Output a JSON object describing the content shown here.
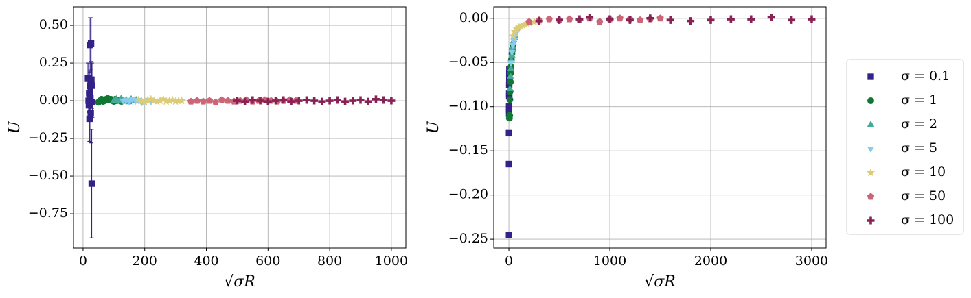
{
  "chart_data": [
    {
      "type": "scatter",
      "xlabel": "√σR",
      "ylabel": "U",
      "grid": true,
      "xlim": [
        -31,
        1047
      ],
      "ylim": [
        -0.977,
        0.623
      ],
      "xticks": [
        0,
        200,
        400,
        600,
        800,
        1000
      ],
      "yticks": [
        {
          "value": 0.5,
          "label": "0.50"
        },
        {
          "value": 0.25,
          "label": "0.25"
        },
        {
          "value": 0,
          "label": "0.00"
        },
        {
          "value": -0.25,
          "label": "−0.25"
        },
        {
          "value": -0.5,
          "label": "−0.50"
        },
        {
          "value": -0.75,
          "label": "−0.75"
        }
      ],
      "series": [
        {
          "name": "σ = 0.1",
          "color": "#332288",
          "marker": "square",
          "x": [
            16,
            18,
            19,
            20,
            21,
            22,
            23,
            24,
            25,
            26,
            27,
            28,
            29,
            30
          ],
          "values": [
            0.15,
            0.0,
            -0.03,
            0.05,
            -0.12,
            0.1,
            0.37,
            0.02,
            -0.08,
            0.38,
            0.14,
            -0.55,
            0.1,
            -0.01
          ],
          "errors": [
            0.1,
            0.08,
            0.1,
            0.12,
            0.15,
            0.1,
            0.18,
            0.1,
            0.2,
            0.17,
            0.12,
            0.36,
            0.15,
            0.1
          ]
        },
        {
          "name": "σ = 1",
          "color": "#117733",
          "marker": "circle",
          "x": [
            50,
            55,
            60,
            65,
            70,
            75,
            80,
            85,
            90,
            95,
            100,
            105,
            110,
            115,
            120,
            125,
            130
          ],
          "values": [
            -0.01,
            0.0,
            0.01,
            -0.005,
            0.0,
            0.01,
            0.015,
            0.005,
            0.01,
            0.0,
            -0.005,
            0.01,
            0.0,
            0.005,
            0.0,
            -0.005,
            0.0
          ]
        },
        {
          "name": "σ = 2",
          "color": "#44AA99",
          "marker": "triangle-up",
          "x": [
            100,
            108,
            116,
            124,
            132,
            140,
            148,
            156,
            164,
            172,
            180
          ],
          "values": [
            0.0,
            0.01,
            -0.005,
            0.015,
            0.0,
            0.005,
            -0.01,
            0.01,
            0.0,
            0.005,
            -0.005
          ]
        },
        {
          "name": "σ = 5",
          "color": "#88CCEE",
          "marker": "triangle-down",
          "x": [
            130,
            140,
            150,
            160,
            170,
            180,
            190,
            200,
            210,
            220
          ],
          "values": [
            0.0,
            0.005,
            -0.005,
            0.01,
            0.0,
            0.005,
            -0.01,
            0.0,
            0.005,
            -0.005
          ]
        },
        {
          "name": "σ = 10",
          "color": "#DDCC77",
          "marker": "star",
          "x": [
            180,
            190,
            200,
            210,
            220,
            230,
            240,
            250,
            260,
            270,
            280,
            290,
            300,
            310,
            320
          ],
          "values": [
            0.005,
            0.0,
            -0.01,
            0.005,
            0.01,
            0.0,
            -0.005,
            0.0,
            0.01,
            -0.005,
            0.0,
            0.005,
            -0.005,
            0.0,
            0.0
          ]
        },
        {
          "name": "σ = 50",
          "color": "#CC6677",
          "marker": "pentagon",
          "x": [
            350,
            370,
            390,
            410,
            430,
            450,
            470,
            490,
            510,
            530,
            550,
            570,
            590,
            610,
            630,
            650,
            670,
            690
          ],
          "values": [
            -0.005,
            0.0,
            -0.005,
            0.0,
            -0.01,
            0.005,
            0.0,
            -0.005,
            0.0,
            0.005,
            -0.005,
            0.0,
            0.005,
            0.0,
            -0.005,
            0.0,
            0.005,
            0.0
          ]
        },
        {
          "name": "σ = 100",
          "color": "#882255",
          "marker": "plus",
          "x": [
            500,
            525,
            550,
            575,
            600,
            625,
            650,
            675,
            700,
            725,
            750,
            775,
            800,
            825,
            850,
            875,
            900,
            925,
            950,
            975,
            1000
          ],
          "values": [
            0.0,
            -0.005,
            0.005,
            0.0,
            -0.005,
            0.0,
            0.005,
            -0.005,
            0.0,
            0.005,
            0.0,
            -0.005,
            0.0,
            0.005,
            -0.005,
            0.0,
            0.005,
            -0.005,
            0.01,
            0.005,
            0.0
          ]
        }
      ]
    },
    {
      "type": "scatter",
      "xlabel": "√σR",
      "ylabel": "U",
      "grid": true,
      "xlim": [
        -150,
        3143
      ],
      "ylim": [
        -0.26,
        0.013
      ],
      "xticks": [
        0,
        1000,
        2000,
        3000
      ],
      "yticks": [
        {
          "value": 0,
          "label": "0.00"
        },
        {
          "value": -0.05,
          "label": "−0.05"
        },
        {
          "value": -0.1,
          "label": "−0.10"
        },
        {
          "value": -0.15,
          "label": "−0.15"
        },
        {
          "value": -0.2,
          "label": "−0.20"
        },
        {
          "value": -0.25,
          "label": "−0.25"
        }
      ],
      "series": [
        {
          "name": "σ = 0.1",
          "color": "#332288",
          "marker": "square",
          "x": [
            1,
            1,
            1,
            2,
            2,
            2,
            3,
            3,
            3,
            4,
            4,
            5
          ],
          "values": [
            -0.245,
            -0.165,
            -0.13,
            -0.108,
            -0.103,
            -0.1,
            -0.088,
            -0.085,
            -0.075,
            -0.068,
            -0.062,
            -0.058
          ]
        },
        {
          "name": "σ = 1",
          "color": "#117733",
          "marker": "circle",
          "x": [
            5,
            8,
            10,
            12,
            15,
            18,
            20,
            25,
            30,
            35,
            40
          ],
          "values": [
            -0.113,
            -0.11,
            -0.092,
            -0.083,
            -0.072,
            -0.062,
            -0.055,
            -0.047,
            -0.04,
            -0.035,
            -0.03
          ]
        },
        {
          "name": "σ = 2",
          "color": "#44AA99",
          "marker": "triangle-up",
          "x": [
            10,
            15,
            20,
            25,
            30,
            35,
            40,
            45,
            50,
            55,
            60
          ],
          "values": [
            -0.08,
            -0.066,
            -0.057,
            -0.048,
            -0.042,
            -0.036,
            -0.032,
            -0.028,
            -0.025,
            -0.022,
            -0.02
          ]
        },
        {
          "name": "σ = 5",
          "color": "#88CCEE",
          "marker": "triangle-down",
          "x": [
            20,
            30,
            40,
            50,
            60,
            70,
            80,
            90,
            100
          ],
          "values": [
            -0.05,
            -0.038,
            -0.03,
            -0.025,
            -0.02,
            -0.017,
            -0.014,
            -0.012,
            -0.011
          ]
        },
        {
          "name": "σ = 10",
          "color": "#DDCC77",
          "marker": "star",
          "x": [
            40,
            60,
            80,
            100,
            120,
            140,
            160,
            180,
            200,
            250,
            300
          ],
          "values": [
            -0.02,
            -0.015,
            -0.012,
            -0.01,
            -0.009,
            -0.008,
            -0.007,
            -0.006,
            -0.005,
            -0.004,
            -0.003
          ]
        },
        {
          "name": "σ = 50",
          "color": "#CC6677",
          "marker": "pentagon",
          "x": [
            200,
            300,
            400,
            500,
            600,
            700,
            800,
            900,
            1000,
            1100,
            1200,
            1300,
            1400,
            1500
          ],
          "values": [
            -0.004,
            -0.002,
            -0.001,
            -0.002,
            -0.001,
            -0.002,
            0.0,
            -0.004,
            -0.001,
            0.0,
            -0.001,
            -0.002,
            -0.001,
            0.0
          ]
        },
        {
          "name": "σ = 100",
          "color": "#882255",
          "marker": "plus",
          "x": [
            300,
            500,
            700,
            800,
            1000,
            1200,
            1400,
            1600,
            1800,
            2000,
            2200,
            2400,
            2600,
            2800,
            3000
          ],
          "values": [
            -0.003,
            -0.002,
            -0.001,
            0.001,
            -0.001,
            -0.002,
            0.0,
            -0.002,
            -0.003,
            -0.002,
            -0.001,
            -0.001,
            0.001,
            -0.002,
            -0.001
          ]
        }
      ]
    }
  ]
}
